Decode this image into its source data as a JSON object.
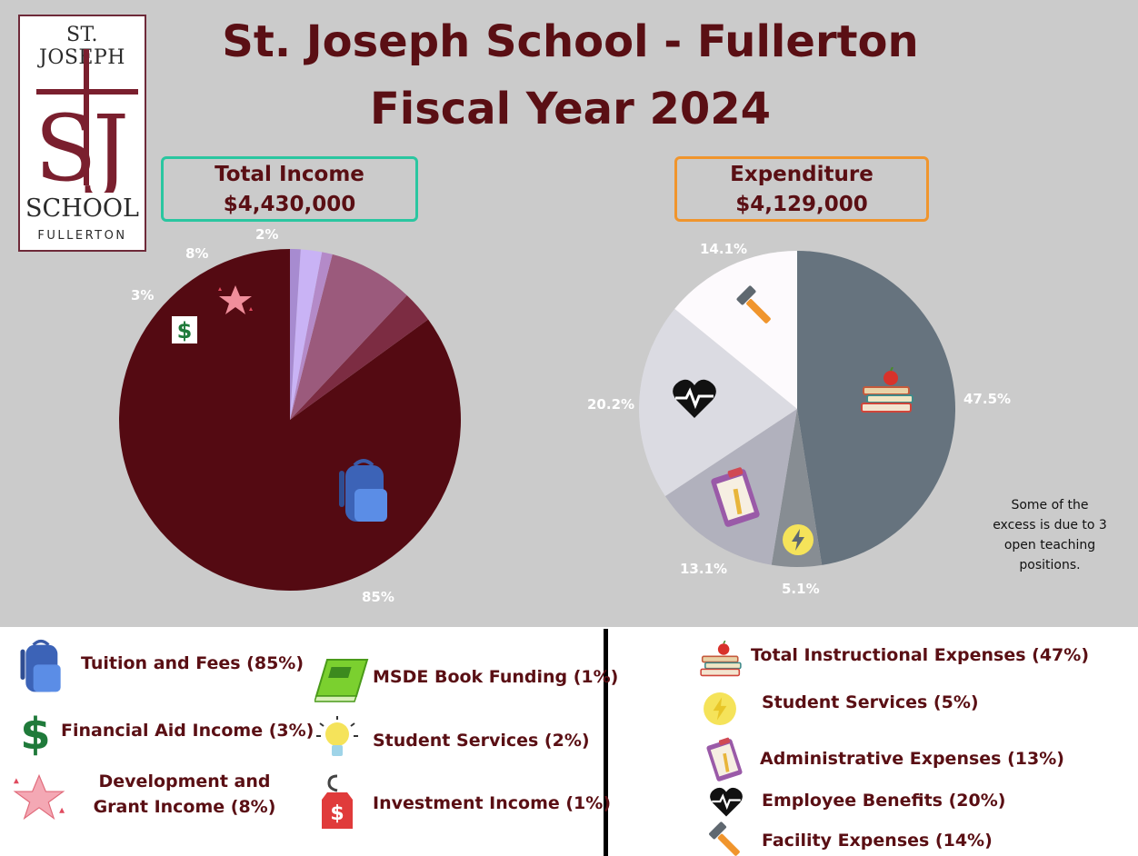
{
  "logo": {
    "line1": "ST. JOSEPH",
    "line2": "SCHOOL",
    "line3": "FULLERTON",
    "monogram": "SJ"
  },
  "title": {
    "line1": "St. Joseph School - Fullerton",
    "line2": "Fiscal Year 2024"
  },
  "income_box": {
    "label": "Total Income",
    "amount": "$4,430,000"
  },
  "expenditure_box": {
    "label": "Expenditure",
    "amount": "$4,129,000"
  },
  "note": "Some of the excess is due to 3 open teaching positions.",
  "colors": {
    "accent_text": "#5a0f14",
    "income_border": "#2ac6a0",
    "expenditure_border": "#f0952d",
    "background": "#cbcbcb"
  },
  "income_legend": [
    {
      "label": "Tuition and Fees (85%)",
      "icon": "backpack-icon"
    },
    {
      "label": "Financial Aid Income (3%)",
      "icon": "dollar-icon"
    },
    {
      "label": "Development and Grant Income (8%)",
      "icon": "star-icon"
    },
    {
      "label": "MSDE Book Funding  (1%)",
      "icon": "book-icon"
    },
    {
      "label": "Student Services (2%)",
      "icon": "lightbulb-icon"
    },
    {
      "label": "Investment Income (1%)",
      "icon": "price-tag-icon"
    }
  ],
  "expense_legend": [
    {
      "label": "Total Instructional Expenses (47%)",
      "icon": "books-apple-icon"
    },
    {
      "label": "Student Services (5%)",
      "icon": "lightning-icon"
    },
    {
      "label": "Administrative Expenses (13%)",
      "icon": "clipboard-icon"
    },
    {
      "label": "Employee Benefits (20%)",
      "icon": "heartbeat-icon"
    },
    {
      "label": "Facility Expenses (14%)",
      "icon": "hammer-icon"
    }
  ],
  "chart_data": [
    {
      "type": "pie",
      "title": "Total Income",
      "categories": [
        "Tuition and Fees",
        "Financial Aid Income",
        "Development and Grant Income",
        "MSDE Book Funding",
        "Student Services",
        "Investment Income"
      ],
      "values": [
        85,
        3,
        8,
        1,
        2,
        1
      ],
      "labels": [
        "85%",
        "3%",
        "8%",
        "",
        "2%",
        ""
      ],
      "colors": [
        "#540a12",
        "#7c2c42",
        "#9b5a7c",
        "#b48ac8",
        "#c9b3f5",
        "#a78bd0"
      ]
    },
    {
      "type": "pie",
      "title": "Expenditure",
      "categories": [
        "Total Instructional Expenses",
        "Student Services",
        "Administrative Expenses",
        "Employee Benefits",
        "Facility Expenses"
      ],
      "values": [
        47.5,
        5.1,
        13.1,
        20.2,
        14.1
      ],
      "labels": [
        "47.5%",
        "5.1%",
        "13.1%",
        "20.2%",
        "14.1%"
      ],
      "colors": [
        "#66737e",
        "#878d93",
        "#b1b1bd",
        "#dbdbe2",
        "#fdfafd"
      ]
    }
  ]
}
